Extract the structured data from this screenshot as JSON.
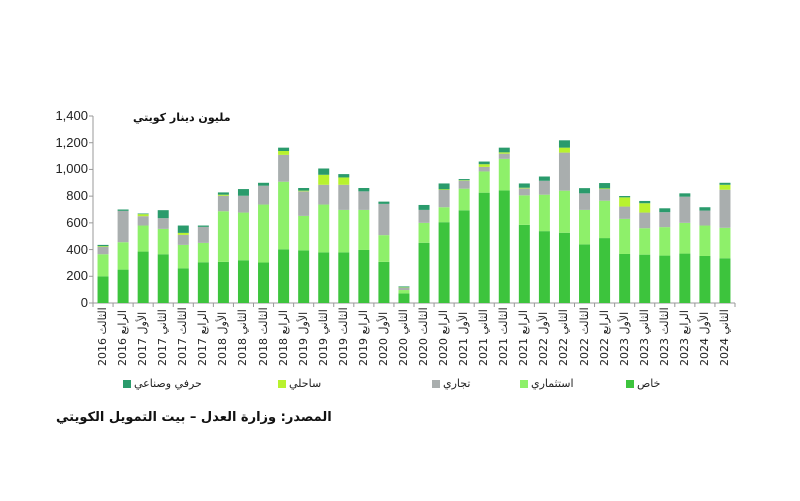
{
  "chart_data": {
    "type": "bar",
    "stacked": true,
    "title": "",
    "unit_label": "مليون دينار كويتي",
    "xlabel": "",
    "ylabel": "",
    "ylim": [
      0,
      1400
    ],
    "yticks": [
      "0",
      "200",
      "400",
      "600",
      "800",
      "1,000",
      "1,200",
      "1,400"
    ],
    "grid": false,
    "legend_position": "bottom",
    "categories": [
      "الثالث 2016",
      "الرابع 2016",
      "الأول 2017",
      "الثاني 2017",
      "الثالث 2017",
      "الرابع 2017",
      "الأول 2018",
      "الثاني 2018",
      "الثالث 2018",
      "الرابع 2018",
      "الأول 2019",
      "الثاني 2019",
      "الثالث 2019",
      "الرابع 2019",
      "الأول 2020",
      "الثاني 2020",
      "الثالث 2020",
      "الرابع 2020",
      "الأول 2021",
      "الثاني 2021",
      "الثالث 2021",
      "الرابع 2021",
      "الأول 2022",
      "الثاني 2022",
      "الثالث 2022",
      "الرابع 2022",
      "الأول 2023",
      "الثاني 2023",
      "الثالث 2023",
      "الرابع 2023",
      "الأول 2024",
      "الثاني 2024"
    ],
    "series": [
      {
        "name": "خاص",
        "color": "#3dc43d",
        "values": [
          200,
          250,
          385,
          365,
          260,
          305,
          308,
          320,
          303,
          402,
          394,
          379,
          379,
          397,
          308,
          72,
          451,
          605,
          694,
          826,
          843,
          585,
          538,
          526,
          439,
          486,
          367,
          362,
          355,
          370,
          352,
          335
        ]
      },
      {
        "name": "استثماري",
        "color": "#8ef06a",
        "values": [
          165,
          205,
          195,
          190,
          175,
          145,
          379,
          357,
          434,
          506,
          258,
          358,
          318,
          300,
          200,
          25,
          149,
          112,
          162,
          159,
          236,
          221,
          273,
          315,
          258,
          280,
          263,
          198,
          213,
          230,
          228,
          228
        ]
      },
      {
        "name": "تجاري",
        "color": "#a9aeae",
        "values": [
          55,
          235,
          70,
          80,
          75,
          120,
          116,
          126,
          141,
          201,
          184,
          148,
          188,
          139,
          234,
          17,
          97,
          129,
          59,
          34,
          39,
          52,
          104,
          285,
          124,
          87,
          92,
          117,
          112,
          196,
          112,
          285
        ]
      },
      {
        "name": "ساحلي",
        "color": "#b8f22e",
        "values": [
          5,
          0,
          15,
          0,
          15,
          0,
          8,
          0,
          0,
          29,
          5,
          75,
          55,
          0,
          0,
          3,
          0,
          5,
          4,
          20,
          10,
          5,
          0,
          37,
          0,
          5,
          69,
          70,
          0,
          0,
          0,
          37
        ]
      },
      {
        "name": "حرفي وصناعي",
        "color": "#2a9b6c",
        "values": [
          10,
          10,
          5,
          60,
          55,
          10,
          17,
          50,
          22,
          25,
          20,
          47,
          25,
          25,
          17,
          7,
          37,
          44,
          9,
          20,
          35,
          32,
          32,
          55,
          39,
          40,
          10,
          17,
          29,
          25,
          25,
          15
        ]
      }
    ]
  },
  "legend": [
    {
      "label": "حرفي وصناعي",
      "color": "#2a9b6c"
    },
    {
      "label": "ساحلي",
      "color": "#b8f22e"
    },
    {
      "label": "تجاري",
      "color": "#a9aeae"
    },
    {
      "label": "استثماري",
      "color": "#8ef06a"
    },
    {
      "label": "خاص",
      "color": "#3dc43d"
    }
  ],
  "source": "المصدر: وزارة العدل – بيت التمويل الكويتي"
}
